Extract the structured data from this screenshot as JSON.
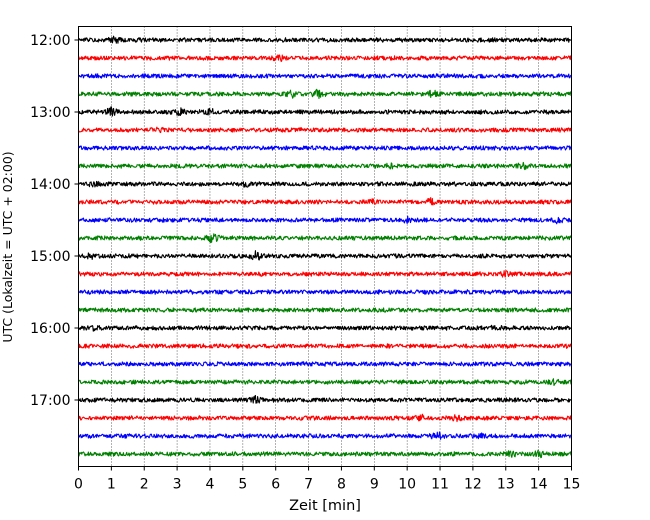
{
  "chart_data": {
    "type": "line",
    "title": "",
    "xlabel": "Zeit  [min]",
    "ylabel": "UTC (Lokalzeit = UTC + 02:00)",
    "xlim": [
      0,
      15
    ],
    "x_ticks": [
      0,
      1,
      2,
      3,
      4,
      5,
      6,
      7,
      8,
      9,
      10,
      11,
      12,
      13,
      14,
      15
    ],
    "y_tick_labels": [
      "12:00",
      "13:00",
      "14:00",
      "15:00",
      "16:00",
      "17:00"
    ],
    "grid": "vertical dotted at each minute",
    "rows_per_hour": 4,
    "minutes_per_row": 15,
    "colors": [
      "#000000",
      "#ff0000",
      "#0000ff",
      "#008000"
    ],
    "series": [
      {
        "start": "12:00",
        "color": "#000000",
        "events": [
          [
            1.1,
            2
          ]
        ]
      },
      {
        "start": "12:15",
        "color": "#ff0000",
        "events": [
          [
            6.1,
            2
          ]
        ]
      },
      {
        "start": "12:30",
        "color": "#0000ff",
        "events": []
      },
      {
        "start": "12:45",
        "color": "#008000",
        "events": [
          [
            6.5,
            2
          ],
          [
            7.3,
            3.5
          ],
          [
            10.8,
            2.5
          ]
        ]
      },
      {
        "start": "13:00",
        "color": "#000000",
        "events": [
          [
            1.0,
            3
          ],
          [
            3.1,
            2.5
          ],
          [
            4.0,
            2
          ]
        ]
      },
      {
        "start": "13:15",
        "color": "#ff0000",
        "events": [
          [
            2.4,
            2
          ]
        ]
      },
      {
        "start": "13:30",
        "color": "#0000ff",
        "events": []
      },
      {
        "start": "13:45",
        "color": "#008000",
        "events": [
          [
            9.5,
            2
          ],
          [
            13.5,
            2
          ]
        ]
      },
      {
        "start": "14:00",
        "color": "#000000",
        "events": [
          [
            0.5,
            2
          ],
          [
            5.1,
            2
          ]
        ]
      },
      {
        "start": "14:15",
        "color": "#ff0000",
        "events": [
          [
            9.0,
            2
          ],
          [
            10.7,
            3
          ]
        ]
      },
      {
        "start": "14:30",
        "color": "#0000ff",
        "events": [
          [
            10.0,
            2
          ],
          [
            14.6,
            2
          ]
        ]
      },
      {
        "start": "14:45",
        "color": "#008000",
        "events": [
          [
            4.1,
            4
          ]
        ]
      },
      {
        "start": "15:00",
        "color": "#000000",
        "events": [
          [
            0.4,
            2
          ],
          [
            5.4,
            3.5
          ]
        ]
      },
      {
        "start": "15:15",
        "color": "#ff0000",
        "events": [
          [
            13.0,
            2
          ]
        ]
      },
      {
        "start": "15:30",
        "color": "#0000ff",
        "events": []
      },
      {
        "start": "15:45",
        "color": "#008000",
        "events": []
      },
      {
        "start": "16:00",
        "color": "#000000",
        "events": [
          [
            0.5,
            1.5
          ],
          [
            12.7,
            1.5
          ]
        ]
      },
      {
        "start": "16:15",
        "color": "#ff0000",
        "events": []
      },
      {
        "start": "16:30",
        "color": "#0000ff",
        "events": []
      },
      {
        "start": "16:45",
        "color": "#008000",
        "events": [
          [
            14.5,
            2
          ]
        ]
      },
      {
        "start": "17:00",
        "color": "#000000",
        "events": [
          [
            5.4,
            3
          ]
        ]
      },
      {
        "start": "17:15",
        "color": "#ff0000",
        "events": [
          [
            10.4,
            2
          ],
          [
            11.5,
            2
          ]
        ]
      },
      {
        "start": "17:30",
        "color": "#0000ff",
        "events": [
          [
            10.9,
            3.5
          ],
          [
            12.2,
            1.5
          ]
        ]
      },
      {
        "start": "17:45",
        "color": "#008000",
        "events": [
          [
            13.2,
            2
          ],
          [
            14.0,
            2
          ]
        ]
      }
    ]
  }
}
